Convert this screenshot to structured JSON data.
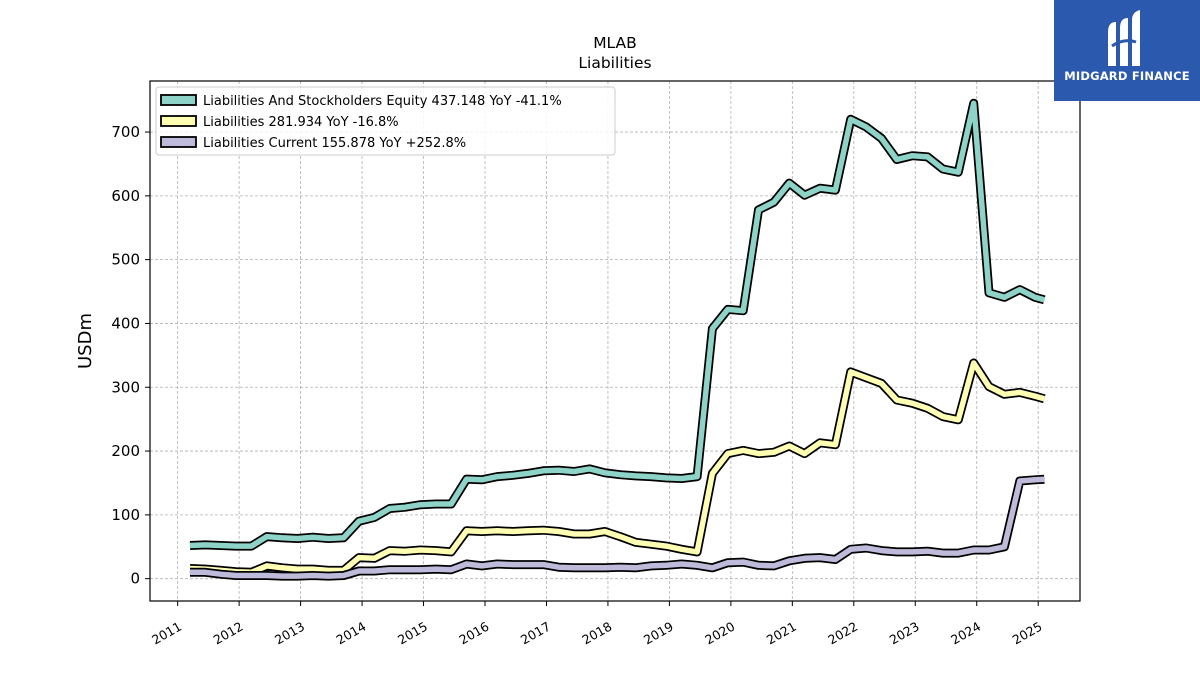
{
  "chart_data": {
    "type": "line",
    "title": "MLAB",
    "subtitle": "Liabilities",
    "ylabel": "USDm",
    "xlabel": "",
    "xlim": [
      2010.55,
      2025.68
    ],
    "ylim": [
      -35,
      780
    ],
    "xticks": [
      "2011",
      "2012",
      "2013",
      "2014",
      "2015",
      "2016",
      "2017",
      "2018",
      "2019",
      "2020",
      "2021",
      "2022",
      "2023",
      "2024",
      "2025"
    ],
    "yticks": [
      0,
      100,
      200,
      300,
      400,
      500,
      600,
      700
    ],
    "grid": true,
    "legend_position": "top-left",
    "series": [
      {
        "name": "Liabilities And Stockholders Equity",
        "legend_label": "Liabilities And Stockholders Equity  437.148 YoY -41.1%",
        "color": "#8dd3c7",
        "x": [
          2011.2,
          2011.45,
          2011.7,
          2011.95,
          2012.2,
          2012.45,
          2012.7,
          2012.95,
          2013.2,
          2013.45,
          2013.7,
          2013.95,
          2014.2,
          2014.45,
          2014.7,
          2014.95,
          2015.2,
          2015.45,
          2015.7,
          2015.95,
          2016.2,
          2016.45,
          2016.7,
          2016.95,
          2017.2,
          2017.45,
          2017.7,
          2017.95,
          2018.2,
          2018.45,
          2018.7,
          2018.95,
          2019.2,
          2019.45,
          2019.7,
          2019.95,
          2020.2,
          2020.45,
          2020.7,
          2020.95,
          2021.2,
          2021.45,
          2021.7,
          2021.95,
          2022.2,
          2022.45,
          2022.7,
          2022.95,
          2023.2,
          2023.45,
          2023.7,
          2023.95,
          2024.2,
          2024.45,
          2024.7,
          2024.95,
          2025.1
        ],
        "values": [
          52,
          53,
          52,
          51,
          51,
          66,
          64,
          63,
          65,
          63,
          64,
          90,
          96,
          110,
          112,
          116,
          117,
          117,
          156,
          155,
          160,
          162,
          165,
          169,
          170,
          168,
          172,
          166,
          163,
          161,
          160,
          158,
          157,
          160,
          392,
          422,
          420,
          578,
          590,
          620,
          601,
          612,
          609,
          720,
          708,
          690,
          657,
          663,
          661,
          642,
          637,
          745,
          448,
          441,
          453,
          441,
          437.148
        ]
      },
      {
        "name": "Liabilities",
        "legend_label": "Liabilities  281.934 YoY -16.8%",
        "color": "#ffffb3",
        "x": [
          2011.2,
          2011.45,
          2011.7,
          2011.95,
          2012.2,
          2012.45,
          2012.7,
          2012.95,
          2013.2,
          2013.45,
          2013.7,
          2013.95,
          2014.2,
          2014.45,
          2014.7,
          2014.95,
          2015.2,
          2015.45,
          2015.7,
          2015.95,
          2016.2,
          2016.45,
          2016.7,
          2016.95,
          2017.2,
          2017.45,
          2017.7,
          2017.95,
          2018.2,
          2018.45,
          2018.7,
          2018.95,
          2019.2,
          2019.45,
          2019.7,
          2019.95,
          2020.2,
          2020.45,
          2020.7,
          2020.95,
          2021.2,
          2021.45,
          2021.7,
          2021.95,
          2022.2,
          2022.45,
          2022.7,
          2022.95,
          2023.2,
          2023.45,
          2023.7,
          2023.95,
          2024.2,
          2024.45,
          2024.7,
          2024.95,
          2025.1
        ],
        "values": [
          16,
          15,
          13,
          11,
          10,
          20,
          17,
          15,
          15,
          13,
          13,
          33,
          32,
          44,
          43,
          45,
          44,
          42,
          75,
          74,
          75,
          74,
          75,
          76,
          74,
          70,
          70,
          74,
          66,
          57,
          54,
          51,
          46,
          42,
          165,
          196,
          201,
          196,
          198,
          208,
          196,
          213,
          210,
          324,
          315,
          306,
          280,
          275,
          267,
          254,
          249,
          338,
          301,
          289,
          292,
          286,
          281.934
        ]
      },
      {
        "name": "Liabilities Current",
        "legend_label": "Liabilities Current  155.878 YoY +252.8%",
        "color": "#bebada",
        "x": [
          2011.2,
          2011.45,
          2011.7,
          2011.95,
          2012.2,
          2012.45,
          2012.7,
          2012.95,
          2013.2,
          2013.45,
          2013.7,
          2013.95,
          2014.2,
          2014.45,
          2014.7,
          2014.95,
          2015.2,
          2015.45,
          2015.7,
          2015.95,
          2016.2,
          2016.45,
          2016.7,
          2016.95,
          2017.2,
          2017.45,
          2017.7,
          2017.95,
          2018.2,
          2018.45,
          2018.7,
          2018.95,
          2019.2,
          2019.45,
          2019.7,
          2019.95,
          2020.2,
          2020.45,
          2020.7,
          2020.95,
          2021.2,
          2021.45,
          2021.7,
          2021.95,
          2022.2,
          2022.45,
          2022.7,
          2022.95,
          2023.2,
          2023.45,
          2023.7,
          2023.95,
          2024.2,
          2024.45,
          2024.7,
          2024.95,
          2025.1
        ],
        "values": [
          10,
          10,
          7,
          5,
          5,
          5,
          4,
          4,
          5,
          4,
          5,
          12,
          12,
          14,
          14,
          14,
          15,
          14,
          23,
          20,
          23,
          22,
          22,
          22,
          18,
          17,
          17,
          17,
          18,
          17,
          20,
          21,
          23,
          21,
          17,
          25,
          26,
          21,
          20,
          28,
          32,
          33,
          30,
          46,
          48,
          44,
          42,
          42,
          43,
          40,
          40,
          45,
          45,
          50,
          153,
          155,
          155.878
        ]
      }
    ]
  },
  "logo": {
    "text": "MIDGARD FINANCE",
    "background": "#2b59ad"
  }
}
